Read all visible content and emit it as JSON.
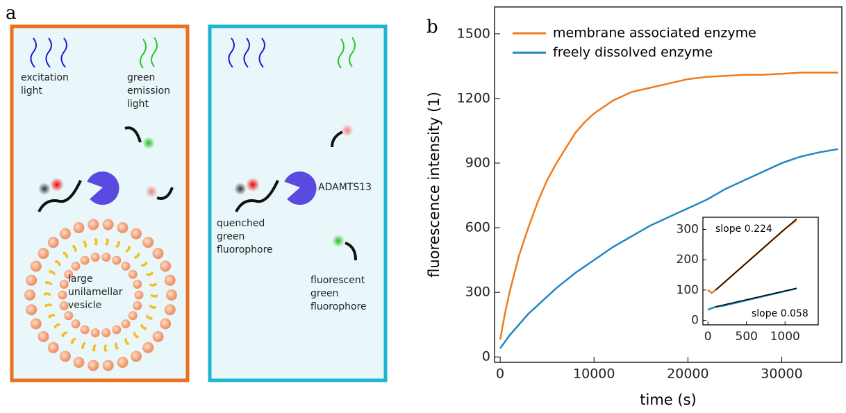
{
  "panel_a": {
    "label": "a",
    "excitation": [
      "excitation",
      "light"
    ],
    "emission": [
      "green",
      "emission",
      "light"
    ],
    "vesicle": [
      "large",
      "unilamellar",
      "vesicle"
    ],
    "enzyme": "ADAMTS13",
    "quenched": [
      "quenched",
      "green",
      "fluorophore"
    ],
    "fluorescent": [
      "fluorescent",
      "green",
      "fluorophore"
    ]
  },
  "panel_b": {
    "label": "b"
  },
  "chart_data": [
    {
      "type": "line",
      "xlabel": "time (s)",
      "ylabel": "fluorescence intensity (1)",
      "xlim": [
        -600,
        36400
      ],
      "ylim": [
        -25,
        1625
      ],
      "xticks": [
        0,
        10000,
        20000,
        30000
      ],
      "yticks": [
        0,
        300,
        600,
        900,
        1200,
        1500
      ],
      "x": [
        0,
        500,
        1000,
        2000,
        3000,
        4000,
        5000,
        6000,
        7000,
        8000,
        9000,
        10000,
        12000,
        14000,
        16000,
        18000,
        20000,
        22000,
        24000,
        26000,
        28000,
        30000,
        32000,
        34000,
        36000
      ],
      "series": [
        {
          "name": "membrane associated enzyme",
          "color": "#f07a1a",
          "values": [
            80,
            200,
            300,
            470,
            600,
            720,
            820,
            900,
            970,
            1040,
            1090,
            1130,
            1190,
            1230,
            1250,
            1270,
            1290,
            1300,
            1305,
            1310,
            1310,
            1315,
            1320,
            1320,
            1320
          ]
        },
        {
          "name": "freely dissolved enzyme",
          "color": "#1f86c4",
          "values": [
            40,
            70,
            100,
            150,
            200,
            240,
            280,
            320,
            355,
            390,
            420,
            450,
            510,
            560,
            610,
            650,
            690,
            730,
            780,
            820,
            860,
            900,
            930,
            950,
            965
          ]
        }
      ]
    },
    {
      "type": "line",
      "xlim": [
        -65,
        1430
      ],
      "ylim": [
        -15,
        340
      ],
      "xticks": [
        0,
        500,
        1000
      ],
      "yticks": [
        0,
        100,
        200,
        300
      ],
      "x": [
        0,
        50,
        100,
        200,
        400,
        600,
        800,
        1000,
        1150
      ],
      "series": [
        {
          "color": "#f07a1a",
          "values": [
            100,
            90,
            100,
            122,
            167,
            212,
            257,
            302,
            330
          ]
        },
        {
          "color": "#1f86c4",
          "values": [
            35,
            40,
            44,
            48,
            60,
            72,
            84,
            96,
            105
          ]
        }
      ],
      "fits": [
        {
          "color": "#000000",
          "x": [
            100,
            1150
          ],
          "values": [
            100,
            335
          ]
        },
        {
          "color": "#000000",
          "x": [
            100,
            1150
          ],
          "values": [
            45,
            106
          ]
        }
      ],
      "annotations": [
        "slope 0.224",
        "slope 0.058"
      ]
    }
  ]
}
